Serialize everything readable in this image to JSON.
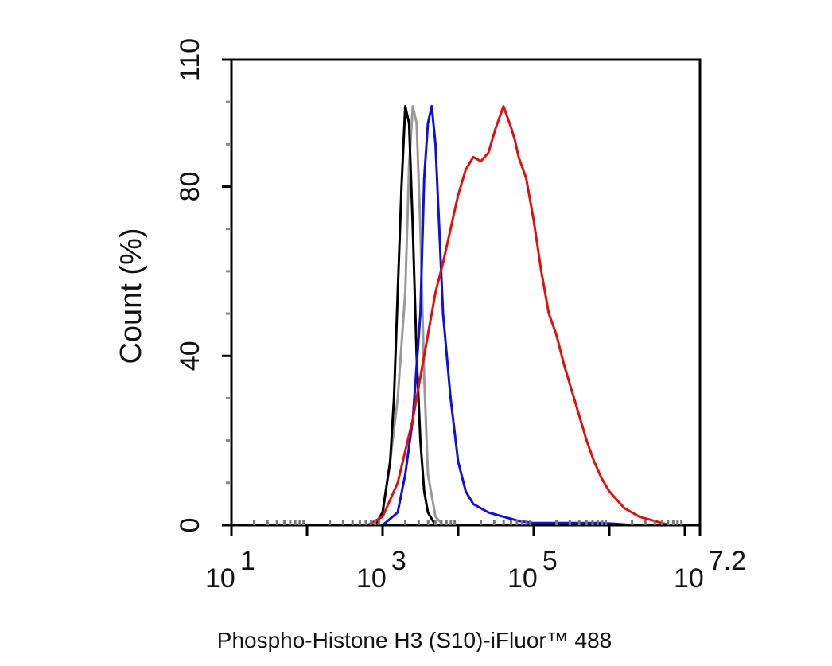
{
  "chart_data": {
    "type": "line",
    "title": "",
    "xlabel": "Phospho-Histone H3 (S10)-iFluor™ 488",
    "ylabel": "Count  (%)",
    "x_scale": "log10",
    "xlim": [
      1,
      7.2
    ],
    "ylim": [
      0,
      110
    ],
    "yticks": [
      {
        "value": 0,
        "label": "0"
      },
      {
        "value": 40,
        "label": "40"
      },
      {
        "value": 80,
        "label": "80"
      },
      {
        "value": 110,
        "label": "110"
      }
    ],
    "xticks": [
      {
        "value": 1,
        "base": "10",
        "exp": "1"
      },
      {
        "value": 3,
        "base": "10",
        "exp": "3"
      },
      {
        "value": 5,
        "base": "10",
        "exp": "5"
      },
      {
        "value": 7.2,
        "base": "10",
        "exp": "7.2"
      }
    ],
    "grid": false,
    "legend": "none",
    "series": [
      {
        "color": "#999999",
        "x": [
          2.9,
          3.0,
          3.1,
          3.2,
          3.3,
          3.35,
          3.4,
          3.45,
          3.5,
          3.55,
          3.6,
          3.7,
          3.8
        ],
        "y": [
          0,
          3,
          15,
          30,
          55,
          85,
          99,
          95,
          70,
          35,
          12,
          2,
          0
        ]
      },
      {
        "color": "#000000",
        "x": [
          2.9,
          3.0,
          3.1,
          3.15,
          3.2,
          3.25,
          3.3,
          3.35,
          3.4,
          3.45,
          3.5,
          3.55,
          3.6,
          3.7
        ],
        "y": [
          0,
          3,
          15,
          30,
          55,
          80,
          99,
          95,
          70,
          40,
          20,
          8,
          3,
          0
        ]
      },
      {
        "color": "#1010dd",
        "x": [
          3.0,
          3.2,
          3.3,
          3.4,
          3.5,
          3.55,
          3.6,
          3.65,
          3.7,
          3.75,
          3.8,
          3.9,
          4.0,
          4.1,
          4.2,
          4.4,
          4.6,
          4.8,
          5.0,
          5.3,
          5.6,
          5.9,
          6.1,
          6.3,
          6.5
        ],
        "y": [
          0,
          3,
          12,
          25,
          50,
          82,
          95,
          99,
          90,
          70,
          50,
          30,
          15,
          8,
          5,
          3,
          2,
          1,
          0.5,
          0.5,
          0.5,
          0.5,
          0.3,
          0,
          0
        ]
      },
      {
        "color": "#e01010",
        "x": [
          2.8,
          3.0,
          3.2,
          3.4,
          3.6,
          3.7,
          3.8,
          3.9,
          4.0,
          4.1,
          4.2,
          4.3,
          4.4,
          4.5,
          4.6,
          4.7,
          4.75,
          4.8,
          4.9,
          5.0,
          5.1,
          5.2,
          5.3,
          5.4,
          5.5,
          5.6,
          5.7,
          5.8,
          5.9,
          6.0,
          6.2,
          6.4,
          6.6,
          6.8
        ],
        "y": [
          0,
          2,
          10,
          25,
          45,
          55,
          62,
          70,
          78,
          84,
          87,
          86,
          88,
          94,
          99,
          94,
          91,
          87,
          82,
          72,
          60,
          50,
          45,
          38,
          32,
          26,
          20,
          15,
          11,
          8,
          4,
          2,
          1,
          0
        ]
      }
    ]
  }
}
